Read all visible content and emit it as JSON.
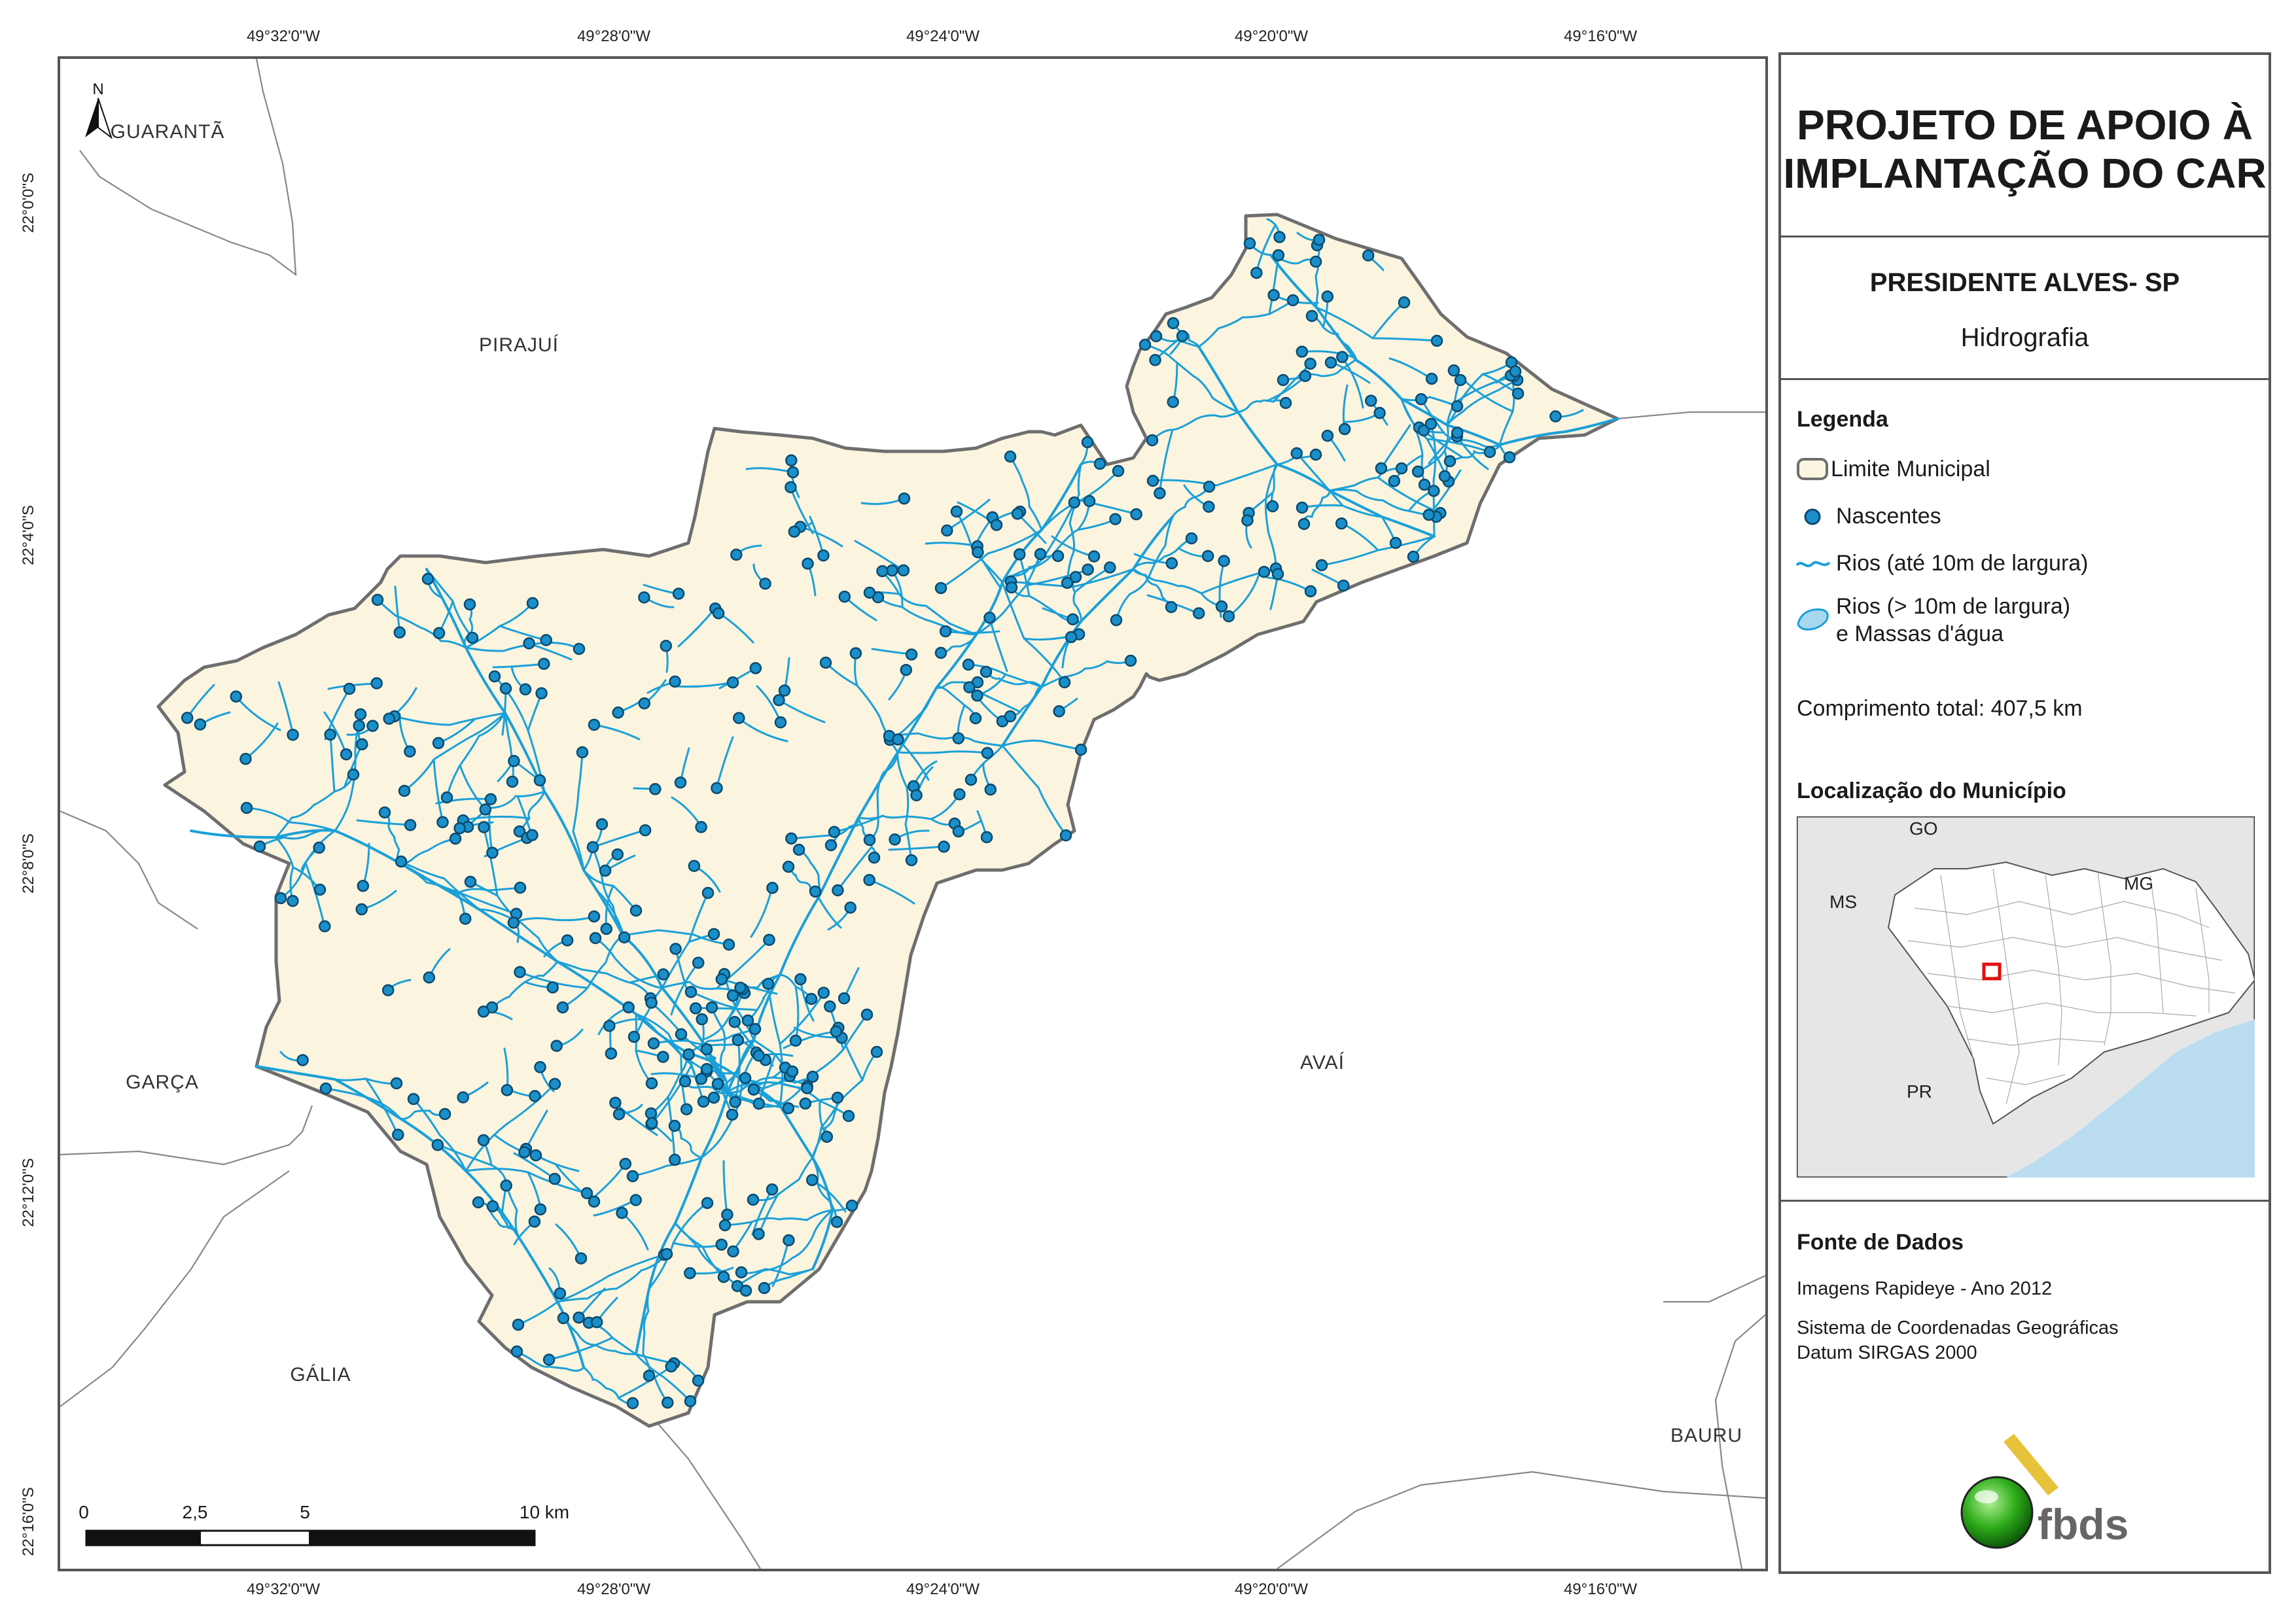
{
  "panel": {
    "title_line1": "PROJETO DE APOIO À",
    "title_line2": "IMPLANTAÇÃO DO CAR",
    "municipality": "PRESIDENTE ALVES- SP",
    "theme": "Hidrografia",
    "legend": {
      "heading": "Legenda",
      "items": [
        {
          "symbol": "polygon-outline",
          "label": "Limite Municipal"
        },
        {
          "symbol": "spring-dot",
          "label": "Nascentes",
          "color": "#1a8fc9"
        },
        {
          "symbol": "river-line",
          "label": "Rios (até 10m de largura)",
          "color": "#1aa0d8"
        },
        {
          "symbol": "water-area",
          "label_line1": "Rios (> 10m de largura)",
          "label_line2": "e Massas d'água",
          "color": "#a8d8ee"
        }
      ]
    },
    "total_length": "Comprimento total: 407,5 km",
    "location_heading": "Localização do Município",
    "location_map": {
      "labels": [
        "GO",
        "MS",
        "MG",
        "PR"
      ],
      "land_color": "#e6e6e6",
      "sea_color": "#b9dcf0",
      "highlight_color": "#e01010"
    },
    "sources_heading": "Fonte de Dados",
    "sources_line1": "Imagens Rapideye - Ano 2012",
    "sources_line2": "Sistema de Coordenadas Geográficas",
    "sources_line3": "Datum SIRGAS 2000",
    "logo_text": "fbds"
  },
  "map": {
    "north_label": "N",
    "longitude_labels": [
      "49°32'0\"W",
      "49°28'0\"W",
      "49°24'0\"W",
      "49°20'0\"W",
      "49°16'0\"W"
    ],
    "latitude_labels": [
      "22°0'0\"S",
      "22°4'0\"S",
      "22°8'0\"S",
      "22°12'0\"S",
      "22°16'0\"S"
    ],
    "neighbors": [
      "GUARANTÃ",
      "PIRAJUÍ",
      "GARÇA",
      "AVAÍ",
      "GÁLIA",
      "BAURU"
    ],
    "scale_labels": [
      "0",
      "2,5",
      "5",
      "10 km"
    ],
    "municipality_fill": "#fbf4df",
    "boundary_color": "#6e6e6e",
    "river_color": "#1aa0d8",
    "spring_color": "#1a8fc9"
  }
}
